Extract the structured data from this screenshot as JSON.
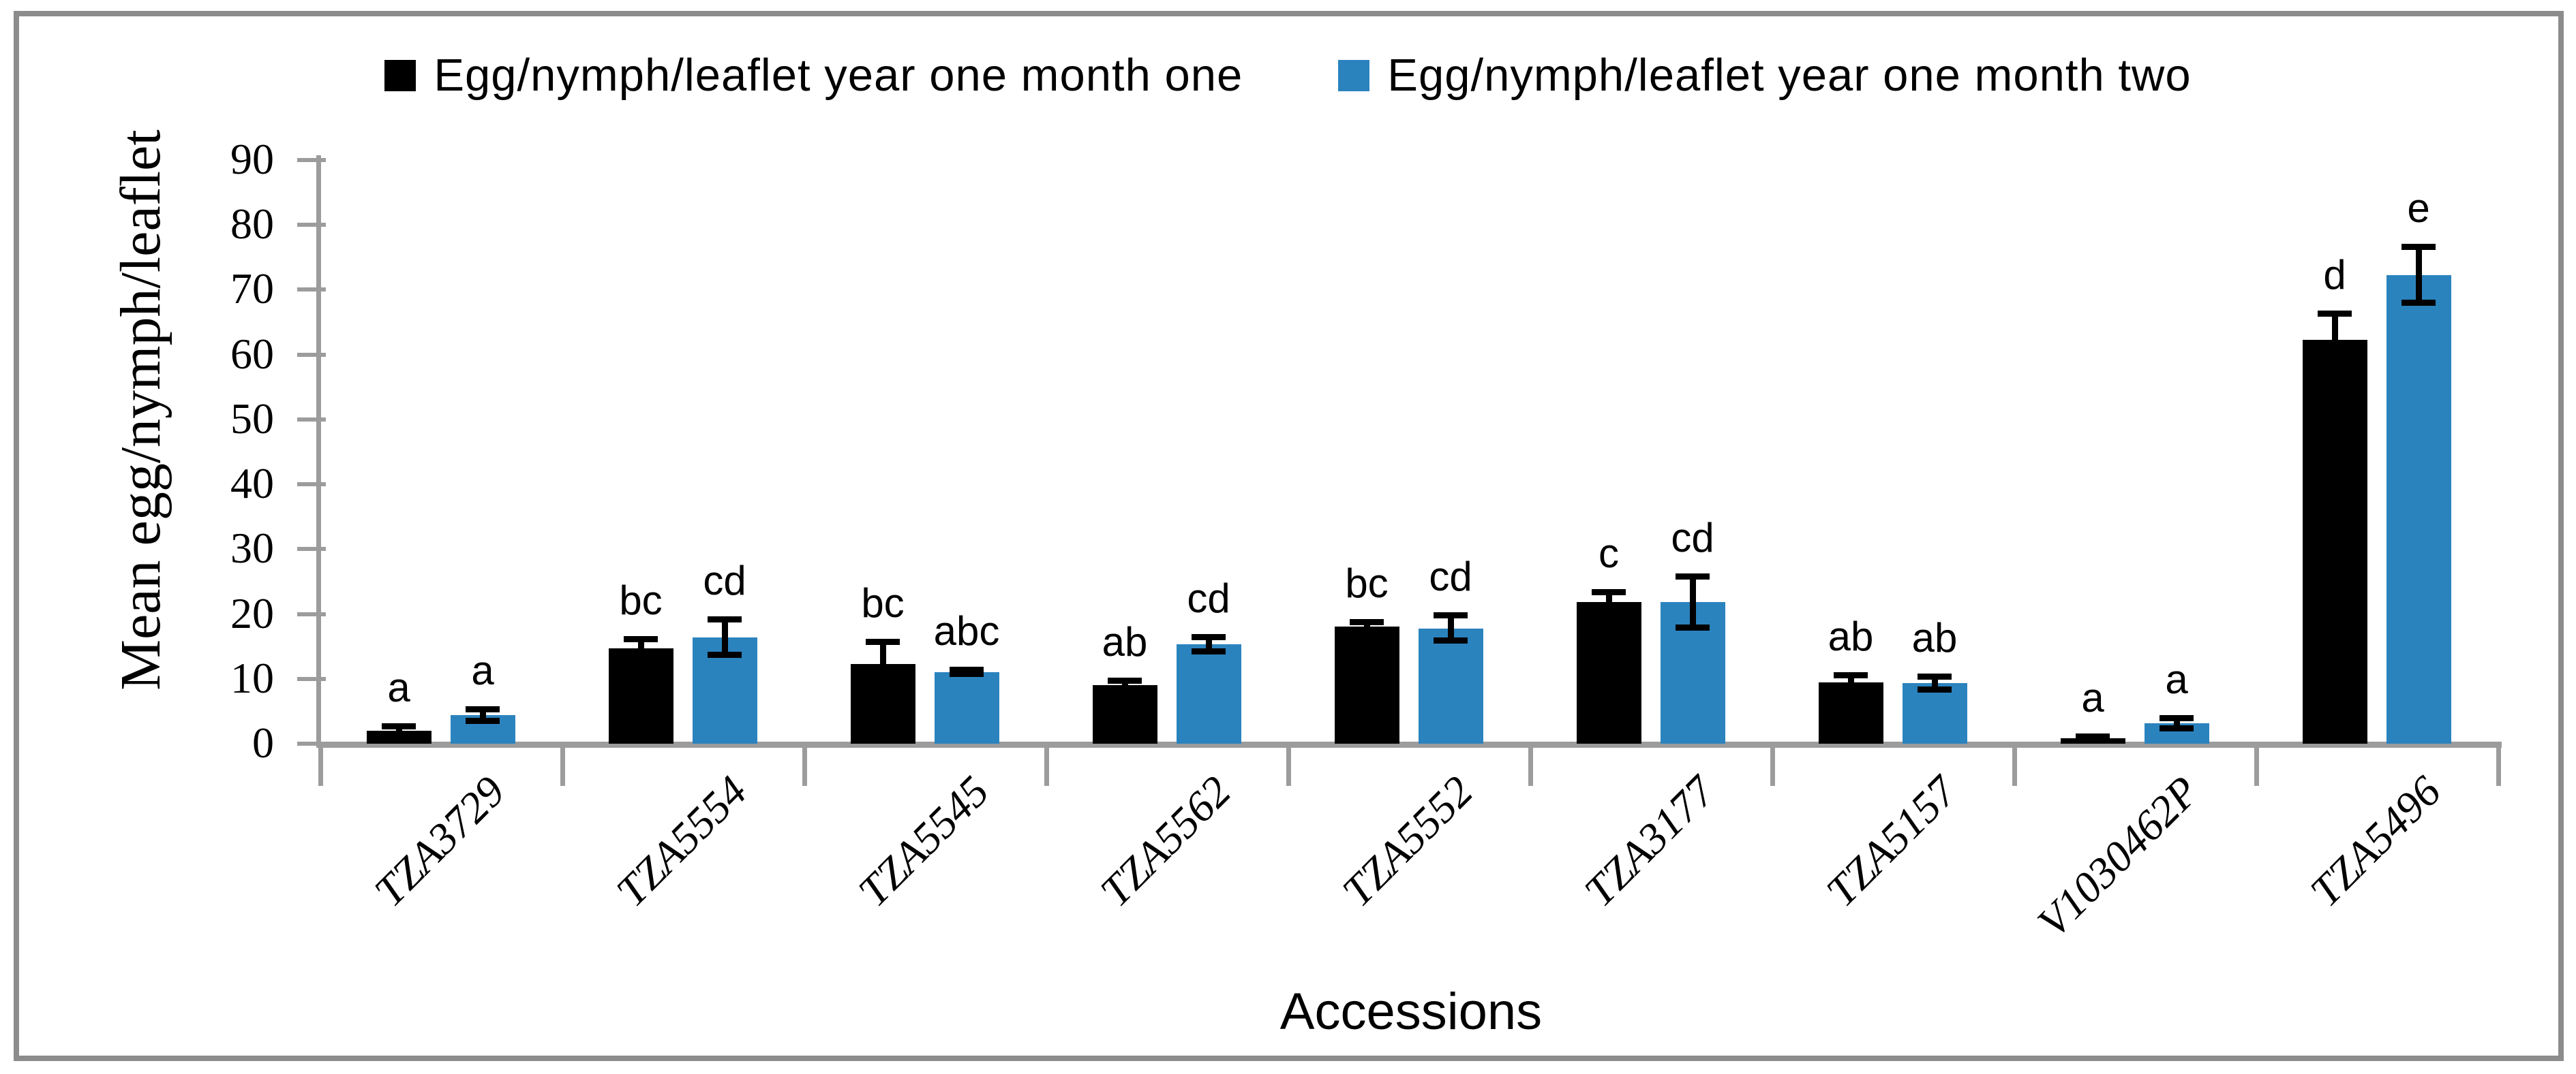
{
  "chart_data": {
    "type": "bar",
    "title": "",
    "xlabel": "Accessions",
    "ylabel": "Mean egg/nymph/leaflet",
    "ylim": [
      0,
      90
    ],
    "ytick_step": 10,
    "ytick_labels": [
      "0",
      "10",
      "20",
      "30",
      "40",
      "50",
      "60",
      "70",
      "80",
      "90"
    ],
    "grid": false,
    "legend_position": "top-center",
    "categories": [
      "TZA3729",
      "TZA5554",
      "TZA5545",
      "TZA5562",
      "TZA5552",
      "TZA3177",
      "TZA5157",
      "V1030462P",
      "TZA5496"
    ],
    "series": [
      {
        "name": "Egg/nymph/leaflet year one month one",
        "color": "#000000",
        "values": [
          2.0,
          14.7,
          12.3,
          9.0,
          18.1,
          21.8,
          9.5,
          0.8,
          62.3
        ],
        "errors": [
          0.6,
          1.4,
          3.4,
          0.7,
          0.6,
          1.5,
          1.0,
          0.2,
          4.0
        ],
        "letters": [
          "a",
          "bc",
          "bc",
          "ab",
          "bc",
          "c",
          "ab",
          "a",
          "d"
        ]
      },
      {
        "name": "Egg/nymph/leaflet year one month two",
        "color": "#2b83be",
        "values": [
          4.4,
          16.4,
          11.0,
          15.3,
          17.8,
          21.8,
          9.3,
          3.1,
          72.3
        ],
        "errors": [
          0.9,
          2.7,
          0.3,
          1.1,
          1.9,
          3.9,
          1.0,
          0.8,
          4.3
        ],
        "letters": [
          "a",
          "cd",
          "abc",
          "cd",
          "cd",
          "cd",
          "ab",
          "a",
          "e"
        ]
      }
    ]
  },
  "colors": {
    "axis": "#9c9c9c",
    "frame_border": "#8c8c8c",
    "series_one": "#000000",
    "series_two": "#2b83be",
    "text": "#000000",
    "background": "#ffffff"
  }
}
